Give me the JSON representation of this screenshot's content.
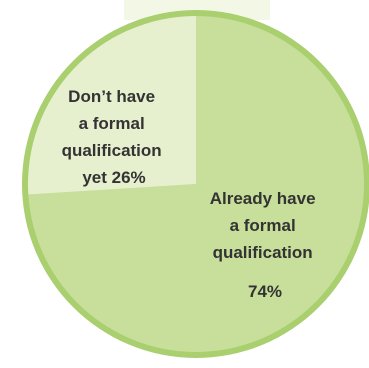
{
  "chart_data": {
    "type": "pie",
    "slices": [
      {
        "label_lines": [
          "Already have",
          "a formal",
          "qualification",
          "74%"
        ],
        "value": 74,
        "color": "#c7df9a"
      },
      {
        "label_lines": [
          "Don’t have",
          "a formal",
          "qualification",
          "yet 26%"
        ],
        "value": 26,
        "color": "#e6f0cf"
      }
    ],
    "colors": {
      "rim": "#a9cf6e",
      "backdrop": "#f2f7e6"
    }
  }
}
